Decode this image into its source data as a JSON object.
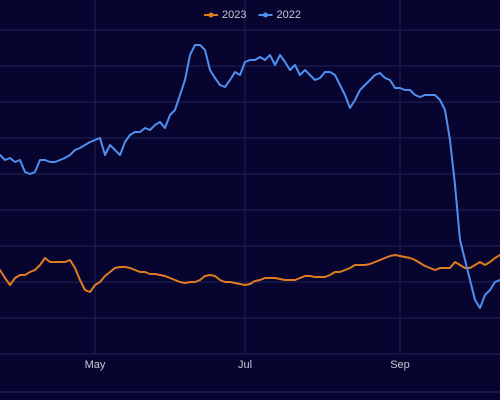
{
  "chart_data": {
    "type": "line",
    "categories": [
      null,
      null,
      null,
      null,
      null,
      null,
      null,
      null,
      null,
      null,
      null,
      null,
      null,
      null,
      null,
      null,
      null,
      null,
      null,
      "May",
      null,
      null,
      null,
      null,
      null,
      null,
      null,
      null,
      null,
      null,
      null,
      null,
      null,
      null,
      null,
      null,
      null,
      null,
      null,
      null,
      null,
      null,
      null,
      null,
      null,
      null,
      null,
      null,
      null,
      "Jul",
      null,
      null,
      null,
      null,
      null,
      null,
      null,
      null,
      null,
      null,
      null,
      null,
      null,
      null,
      null,
      null,
      null,
      null,
      null,
      null,
      null,
      null,
      null,
      null,
      null,
      null,
      null,
      null,
      null,
      null,
      "Sep",
      null,
      null,
      null,
      null,
      null,
      null,
      null,
      null,
      null,
      null,
      null,
      null,
      null,
      null,
      null,
      null,
      null,
      null,
      null,
      null
    ],
    "series": [
      {
        "name": "2023",
        "color": "#e07b22",
        "values": [
          120,
          112,
          105,
          112,
          115,
          115,
          118,
          120,
          125,
          132,
          128,
          128,
          128,
          128,
          130,
          122,
          110,
          100,
          98,
          105,
          108,
          114,
          118,
          122,
          123,
          123,
          122,
          120,
          118,
          118,
          116,
          116,
          115,
          114,
          112,
          110,
          108,
          107,
          108,
          108,
          110,
          114,
          115,
          114,
          110,
          108,
          108,
          107,
          106,
          105,
          106,
          109,
          110,
          112,
          112,
          112,
          111,
          110,
          110,
          110,
          112,
          114,
          114,
          113,
          113,
          113,
          115,
          118,
          118,
          120,
          122,
          125,
          125,
          125,
          126,
          128,
          130,
          132,
          134,
          135,
          134,
          133,
          132,
          130,
          127,
          124,
          122,
          120,
          122,
          122,
          122,
          128,
          125,
          122,
          122,
          125,
          128,
          125,
          128,
          132,
          135
        ]
      },
      {
        "name": "2022",
        "color": "#4f8ff0",
        "values": [
          235,
          230,
          232,
          228,
          230,
          218,
          216,
          218,
          230,
          230,
          228,
          228,
          230,
          232,
          235,
          240,
          242,
          245,
          248,
          250,
          252,
          235,
          245,
          240,
          235,
          248,
          255,
          258,
          258,
          262,
          260,
          265,
          268,
          262,
          275,
          280,
          295,
          310,
          335,
          345,
          345,
          340,
          320,
          312,
          305,
          303,
          310,
          318,
          315,
          328,
          330,
          330,
          333,
          330,
          335,
          325,
          335,
          328,
          320,
          325,
          315,
          320,
          315,
          310,
          312,
          318,
          318,
          315,
          305,
          295,
          282,
          290,
          300,
          305,
          310,
          315,
          317,
          312,
          310,
          302,
          302,
          300,
          300,
          295,
          293,
          295,
          295,
          295,
          290,
          280,
          250,
          205,
          150,
          130,
          110,
          90,
          82,
          95,
          100,
          108,
          110
        ]
      }
    ],
    "ylim": [
      0,
      390
    ],
    "yticks": [
      36,
      72,
      108,
      144,
      180,
      216,
      252,
      288,
      324,
      360
    ],
    "grid": true
  }
}
